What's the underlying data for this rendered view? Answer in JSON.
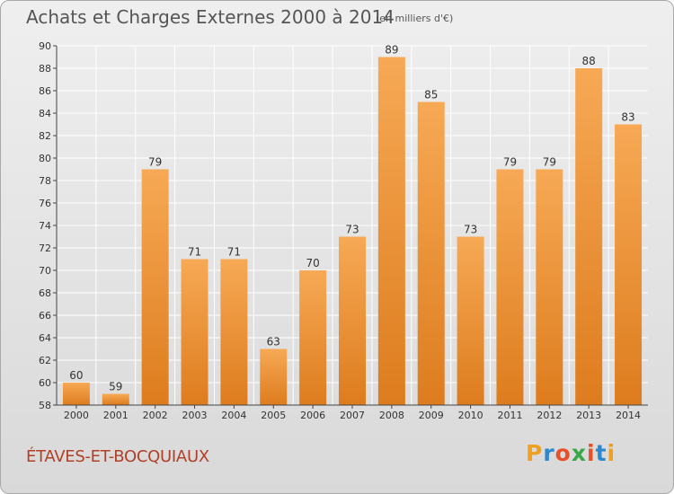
{
  "header": {
    "title": "Achats et Charges Externes 2000 à 2014",
    "subtitle": "(en milliers d'€)"
  },
  "footer": {
    "commune": "ÉTAVES-ET-BOCQUIAUX",
    "logo": {
      "text": "Proxiti",
      "letter_colors": [
        "#f0a020",
        "#2e88d0",
        "#e8502a",
        "#3aa84a",
        "#e8502a",
        "#2e88d0",
        "#f0a020"
      ]
    }
  },
  "colors": {
    "bar_top": "#f7a955",
    "bar_bottom": "#dd7c1e",
    "grid": "#ffffff",
    "axis": "#444444",
    "label": "#333333"
  },
  "chart_data": {
    "type": "bar",
    "title": "Achats et Charges Externes 2000 à 2014",
    "subtitle": "(en milliers d'€)",
    "xlabel": "",
    "ylabel": "",
    "categories": [
      "2000",
      "2001",
      "2002",
      "2003",
      "2004",
      "2005",
      "2006",
      "2007",
      "2008",
      "2009",
      "2010",
      "2011",
      "2012",
      "2013",
      "2014"
    ],
    "values": [
      60,
      59,
      79,
      71,
      71,
      63,
      70,
      73,
      89,
      85,
      73,
      79,
      79,
      88,
      83
    ],
    "ylim": [
      58,
      90
    ],
    "yticks": [
      58,
      60,
      62,
      64,
      66,
      68,
      70,
      72,
      74,
      76,
      78,
      80,
      82,
      84,
      86,
      88,
      90
    ],
    "grid": true
  }
}
